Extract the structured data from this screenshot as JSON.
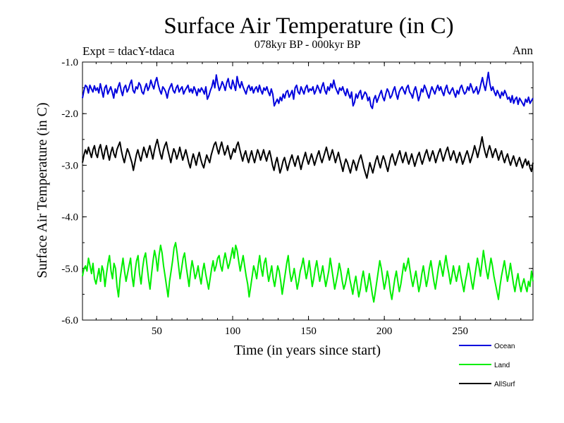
{
  "chart_data": {
    "type": "line",
    "title": "Surface Air Temperature (in C)",
    "subtitle": "078kyr BP - 000kyr BP",
    "expt_label": "Expt = tdacY-tdaca",
    "season_label": "Ann",
    "xlabel": "Time (in years since start)",
    "ylabel": "Surface Air Temperature (in C)",
    "xlim": [
      1,
      298
    ],
    "ylim": [
      -6.0,
      -1.0
    ],
    "x_ticks": [
      50,
      100,
      150,
      200,
      250
    ],
    "x_tick_labels": [
      "50",
      "100",
      "150",
      "200",
      "250"
    ],
    "y_ticks": [
      -6.0,
      -5.0,
      -4.0,
      -3.0,
      -2.0,
      -1.0
    ],
    "y_tick_labels": [
      "-6.0",
      "-5.0",
      "-4.0",
      "-3.0",
      "-2.0",
      "-1.0"
    ],
    "series": [
      {
        "name": "Ocean",
        "color": "#0000dd",
        "values": [
          -1.7,
          -1.55,
          -1.45,
          -1.48,
          -1.6,
          -1.45,
          -1.52,
          -1.58,
          -1.46,
          -1.55,
          -1.5,
          -1.6,
          -1.42,
          -1.55,
          -1.68,
          -1.5,
          -1.45,
          -1.62,
          -1.55,
          -1.48,
          -1.58,
          -1.7,
          -1.52,
          -1.6,
          -1.48,
          -1.4,
          -1.55,
          -1.65,
          -1.5,
          -1.45,
          -1.58,
          -1.52,
          -1.42,
          -1.35,
          -1.55,
          -1.6,
          -1.48,
          -1.52,
          -1.4,
          -1.45,
          -1.58,
          -1.62,
          -1.5,
          -1.42,
          -1.55,
          -1.48,
          -1.35,
          -1.45,
          -1.52,
          -1.38,
          -1.3,
          -1.45,
          -1.55,
          -1.62,
          -1.48,
          -1.52,
          -1.58,
          -1.7,
          -1.55,
          -1.48,
          -1.42,
          -1.55,
          -1.6,
          -1.5,
          -1.45,
          -1.58,
          -1.52,
          -1.48,
          -1.62,
          -1.55,
          -1.5,
          -1.45,
          -1.58,
          -1.52,
          -1.6,
          -1.48,
          -1.55,
          -1.65,
          -1.52,
          -1.58,
          -1.5,
          -1.55,
          -1.62,
          -1.48,
          -1.72,
          -1.65,
          -1.55,
          -1.48,
          -1.35,
          -1.5,
          -1.25,
          -1.42,
          -1.55,
          -1.48,
          -1.38,
          -1.45,
          -1.55,
          -1.4,
          -1.32,
          -1.48,
          -1.52,
          -1.35,
          -1.45,
          -1.55,
          -1.28,
          -1.42,
          -1.5,
          -1.38,
          -1.48,
          -1.55,
          -1.62,
          -1.5,
          -1.45,
          -1.55,
          -1.48,
          -1.6,
          -1.52,
          -1.48,
          -1.58,
          -1.45,
          -1.55,
          -1.62,
          -1.5,
          -1.55,
          -1.48,
          -1.58,
          -1.65,
          -1.52,
          -1.62,
          -1.85,
          -1.78,
          -1.72,
          -1.8,
          -1.68,
          -1.75,
          -1.62,
          -1.7,
          -1.58,
          -1.55,
          -1.68,
          -1.62,
          -1.55,
          -1.72,
          -1.5,
          -1.45,
          -1.58,
          -1.62,
          -1.48,
          -1.55,
          -1.62,
          -1.5,
          -1.45,
          -1.58,
          -1.52,
          -1.55,
          -1.48,
          -1.62,
          -1.55,
          -1.45,
          -1.52,
          -1.6,
          -1.48,
          -1.4,
          -1.55,
          -1.62,
          -1.48,
          -1.55,
          -1.42,
          -1.5,
          -1.35,
          -1.48,
          -1.55,
          -1.62,
          -1.5,
          -1.55,
          -1.48,
          -1.58,
          -1.65,
          -1.52,
          -1.62,
          -1.7,
          -1.58,
          -1.85,
          -1.78,
          -1.62,
          -1.7,
          -1.6,
          -1.55,
          -1.72,
          -1.65,
          -1.58,
          -1.62,
          -1.75,
          -1.68,
          -1.85,
          -1.9,
          -1.72,
          -1.65,
          -1.78,
          -1.7,
          -1.62,
          -1.55,
          -1.68,
          -1.75,
          -1.62,
          -1.52,
          -1.58,
          -1.7,
          -1.65,
          -1.55,
          -1.48,
          -1.62,
          -1.72,
          -1.58,
          -1.52,
          -1.48,
          -1.55,
          -1.62,
          -1.5,
          -1.45,
          -1.58,
          -1.62,
          -1.7,
          -1.55,
          -1.48,
          -1.6,
          -1.75,
          -1.65,
          -1.52,
          -1.58,
          -1.45,
          -1.52,
          -1.62,
          -1.7,
          -1.58,
          -1.48,
          -1.55,
          -1.62,
          -1.52,
          -1.45,
          -1.55,
          -1.48,
          -1.58,
          -1.65,
          -1.52,
          -1.45,
          -1.58,
          -1.62,
          -1.55,
          -1.5,
          -1.6,
          -1.68,
          -1.55,
          -1.62,
          -1.5,
          -1.45,
          -1.55,
          -1.62,
          -1.58,
          -1.48,
          -1.55,
          -1.42,
          -1.5,
          -1.6,
          -1.55,
          -1.48,
          -1.62,
          -1.55,
          -1.42,
          -1.3,
          -1.45,
          -1.55,
          -1.38,
          -1.2,
          -1.42,
          -1.55,
          -1.48,
          -1.58,
          -1.65,
          -1.55,
          -1.62,
          -1.7,
          -1.58,
          -1.65,
          -1.55,
          -1.62,
          -1.72,
          -1.68,
          -1.78,
          -1.65,
          -1.8,
          -1.72,
          -1.68,
          -1.82,
          -1.7,
          -1.75,
          -1.8,
          -1.85,
          -1.72,
          -1.78,
          -1.68,
          -1.8,
          -1.75,
          -1.7
        ]
      },
      {
        "name": "Land",
        "color": "#00ee00",
        "values": [
          -5.15,
          -5.0,
          -4.95,
          -5.05,
          -4.8,
          -4.95,
          -5.1,
          -4.9,
          -5.2,
          -5.3,
          -5.15,
          -5.0,
          -5.25,
          -4.95,
          -5.05,
          -5.35,
          -5.1,
          -4.9,
          -4.75,
          -5.05,
          -5.2,
          -4.9,
          -5.0,
          -5.35,
          -5.55,
          -5.2,
          -5.0,
          -4.8,
          -5.05,
          -5.25,
          -5.1,
          -4.95,
          -4.8,
          -5.15,
          -5.35,
          -5.05,
          -4.85,
          -4.75,
          -5.1,
          -5.3,
          -5.0,
          -4.8,
          -4.7,
          -4.95,
          -5.2,
          -5.4,
          -5.1,
          -4.85,
          -4.65,
          -4.8,
          -5.05,
          -4.75,
          -4.55,
          -4.7,
          -4.95,
          -5.15,
          -5.35,
          -5.55,
          -5.25,
          -5.05,
          -4.85,
          -4.6,
          -4.5,
          -4.7,
          -4.95,
          -5.2,
          -5.0,
          -4.8,
          -4.7,
          -4.95,
          -5.15,
          -5.35,
          -5.05,
          -4.85,
          -5.0,
          -5.2,
          -5.1,
          -4.95,
          -5.15,
          -5.3,
          -5.05,
          -4.9,
          -5.1,
          -5.25,
          -5.4,
          -5.2,
          -5.0,
          -4.85,
          -5.05,
          -4.95,
          -4.8,
          -4.75,
          -4.95,
          -5.05,
          -4.85,
          -4.7,
          -4.85,
          -5.0,
          -4.9,
          -4.75,
          -4.6,
          -4.8,
          -4.55,
          -4.65,
          -4.85,
          -5.05,
          -4.9,
          -4.75,
          -4.95,
          -5.15,
          -5.3,
          -5.55,
          -5.35,
          -5.15,
          -4.95,
          -5.05,
          -5.2,
          -4.95,
          -4.75,
          -5.0,
          -5.15,
          -4.9,
          -4.8,
          -5.05,
          -5.25,
          -5.1,
          -4.95,
          -5.2,
          -5.35,
          -5.15,
          -4.95,
          -5.05,
          -5.25,
          -5.5,
          -5.3,
          -5.1,
          -4.9,
          -4.75,
          -5.05,
          -5.25,
          -5.15,
          -5.0,
          -5.2,
          -5.4,
          -5.25,
          -5.05,
          -4.95,
          -4.8,
          -5.0,
          -5.2,
          -5.05,
          -4.85,
          -5.1,
          -5.35,
          -5.2,
          -5.0,
          -4.85,
          -5.05,
          -5.25,
          -5.1,
          -4.95,
          -5.15,
          -5.35,
          -5.2,
          -5.05,
          -4.8,
          -5.0,
          -5.2,
          -5.4,
          -5.25,
          -5.1,
          -4.9,
          -5.05,
          -5.25,
          -5.4,
          -5.3,
          -5.15,
          -5.0,
          -5.2,
          -5.35,
          -5.5,
          -5.3,
          -5.15,
          -5.35,
          -5.55,
          -5.4,
          -5.2,
          -5.05,
          -5.25,
          -5.45,
          -5.3,
          -5.1,
          -5.3,
          -5.5,
          -5.65,
          -5.45,
          -5.25,
          -5.05,
          -4.85,
          -5.0,
          -5.2,
          -5.4,
          -5.25,
          -5.05,
          -5.2,
          -5.45,
          -5.6,
          -5.4,
          -5.2,
          -5.05,
          -5.25,
          -5.45,
          -5.3,
          -5.1,
          -4.9,
          -5.05,
          -4.95,
          -4.8,
          -5.0,
          -5.2,
          -5.35,
          -5.2,
          -5.05,
          -5.25,
          -5.45,
          -5.3,
          -5.1,
          -4.95,
          -5.15,
          -5.35,
          -5.2,
          -5.0,
          -4.85,
          -5.05,
          -5.25,
          -5.4,
          -5.2,
          -5.0,
          -4.85,
          -5.0,
          -5.15,
          -4.95,
          -4.75,
          -4.95,
          -5.1,
          -5.3,
          -5.15,
          -4.95,
          -5.1,
          -5.25,
          -5.1,
          -4.95,
          -5.15,
          -5.3,
          -5.45,
          -5.25,
          -5.1,
          -4.9,
          -5.05,
          -5.25,
          -5.4,
          -5.2,
          -5.0,
          -4.8,
          -4.95,
          -5.15,
          -4.9,
          -4.65,
          -4.85,
          -5.05,
          -5.2,
          -5.0,
          -4.8,
          -4.95,
          -5.15,
          -5.3,
          -5.45,
          -5.6,
          -5.35,
          -5.15,
          -5.0,
          -4.85,
          -5.05,
          -5.25,
          -5.1,
          -4.9,
          -5.1,
          -5.3,
          -5.45,
          -5.25,
          -5.1,
          -5.3,
          -5.45,
          -5.3,
          -5.2,
          -5.35,
          -5.45,
          -5.25,
          -5.35,
          -5.05,
          -5.25
        ]
      },
      {
        "name": "AllSurf",
        "color": "#000000",
        "values": [
          -2.95,
          -2.8,
          -2.7,
          -2.78,
          -2.65,
          -2.75,
          -2.85,
          -2.7,
          -2.62,
          -2.78,
          -2.85,
          -2.68,
          -2.6,
          -2.75,
          -2.88,
          -2.72,
          -2.62,
          -2.78,
          -2.9,
          -2.75,
          -2.65,
          -2.78,
          -2.85,
          -2.7,
          -2.62,
          -2.55,
          -2.72,
          -2.85,
          -2.95,
          -2.8,
          -2.68,
          -2.75,
          -2.85,
          -2.95,
          -3.1,
          -2.95,
          -2.8,
          -2.7,
          -2.82,
          -2.92,
          -2.78,
          -2.65,
          -2.75,
          -2.85,
          -2.72,
          -2.62,
          -2.75,
          -2.88,
          -2.72,
          -2.6,
          -2.5,
          -2.65,
          -2.78,
          -2.88,
          -2.72,
          -2.62,
          -2.55,
          -2.7,
          -2.82,
          -2.95,
          -2.8,
          -2.68,
          -2.75,
          -2.88,
          -2.78,
          -2.65,
          -2.78,
          -2.9,
          -2.8,
          -2.7,
          -2.82,
          -2.95,
          -3.05,
          -2.9,
          -2.78,
          -2.88,
          -3.0,
          -2.85,
          -2.75,
          -2.88,
          -2.98,
          -3.05,
          -2.92,
          -2.8,
          -2.88,
          -2.95,
          -2.8,
          -2.7,
          -2.6,
          -2.55,
          -2.68,
          -2.78,
          -2.65,
          -2.55,
          -2.68,
          -2.8,
          -2.72,
          -2.62,
          -2.75,
          -2.88,
          -2.78,
          -2.68,
          -2.75,
          -2.62,
          -2.55,
          -2.68,
          -2.8,
          -2.92,
          -2.8,
          -2.72,
          -2.85,
          -2.95,
          -2.82,
          -2.72,
          -2.85,
          -2.95,
          -2.82,
          -2.7,
          -2.78,
          -2.9,
          -2.8,
          -2.7,
          -2.82,
          -2.92,
          -2.8,
          -2.72,
          -2.85,
          -3.0,
          -3.1,
          -2.95,
          -2.85,
          -3.0,
          -3.15,
          -3.05,
          -2.92,
          -2.85,
          -2.98,
          -3.1,
          -2.98,
          -2.88,
          -2.8,
          -2.92,
          -3.02,
          -2.9,
          -2.82,
          -2.95,
          -3.08,
          -2.95,
          -2.85,
          -2.75,
          -2.88,
          -2.98,
          -2.88,
          -2.78,
          -2.88,
          -3.0,
          -2.9,
          -2.8,
          -2.72,
          -2.85,
          -2.95,
          -2.85,
          -2.75,
          -2.65,
          -2.78,
          -2.9,
          -2.8,
          -2.7,
          -2.82,
          -2.95,
          -2.85,
          -2.75,
          -2.88,
          -3.0,
          -3.12,
          -2.98,
          -2.88,
          -2.95,
          -3.05,
          -3.15,
          -3.02,
          -2.9,
          -2.98,
          -3.1,
          -2.98,
          -2.88,
          -2.8,
          -2.92,
          -3.05,
          -3.15,
          -3.25,
          -3.1,
          -2.95,
          -3.05,
          -3.15,
          -3.02,
          -2.9,
          -2.82,
          -2.95,
          -3.05,
          -2.92,
          -2.82,
          -2.9,
          -3.02,
          -3.12,
          -2.98,
          -2.85,
          -2.78,
          -2.9,
          -3.0,
          -2.9,
          -2.8,
          -2.72,
          -2.85,
          -2.95,
          -2.85,
          -2.75,
          -2.88,
          -2.98,
          -2.88,
          -2.78,
          -2.9,
          -3.02,
          -2.92,
          -2.82,
          -2.75,
          -2.88,
          -2.98,
          -2.88,
          -2.78,
          -2.7,
          -2.82,
          -2.92,
          -2.82,
          -2.72,
          -2.82,
          -2.95,
          -2.85,
          -2.75,
          -2.68,
          -2.8,
          -2.92,
          -2.82,
          -2.72,
          -2.65,
          -2.78,
          -2.9,
          -2.8,
          -2.72,
          -2.82,
          -2.95,
          -2.85,
          -2.75,
          -2.85,
          -2.98,
          -2.9,
          -2.8,
          -2.72,
          -2.82,
          -2.95,
          -2.85,
          -2.75,
          -2.62,
          -2.72,
          -2.85,
          -2.72,
          -2.6,
          -2.45,
          -2.62,
          -2.75,
          -2.85,
          -2.72,
          -2.62,
          -2.72,
          -2.85,
          -2.75,
          -2.68,
          -2.78,
          -2.9,
          -2.8,
          -2.72,
          -2.85,
          -2.95,
          -2.85,
          -2.78,
          -2.9,
          -3.0,
          -2.9,
          -2.82,
          -2.92,
          -3.02,
          -2.92,
          -2.85,
          -2.95,
          -3.05,
          -2.95,
          -2.88,
          -3.0,
          -2.92,
          -3.05,
          -3.12,
          -2.95
        ]
      }
    ],
    "legend": [
      "Ocean",
      "Land",
      "AllSurf"
    ],
    "legend_position": "bottom-right",
    "grid": false
  }
}
